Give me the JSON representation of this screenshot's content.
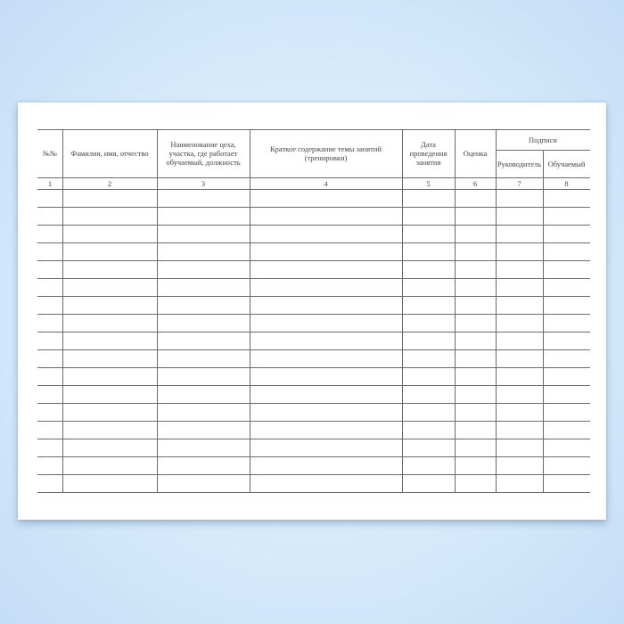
{
  "table": {
    "headers": [
      "№№",
      "Фамилия, имя, отчество",
      "Наименование цеха, участка, где работает обучаемый, должность",
      "Краткое содержание темы занятий (тренировки)",
      "Дата проведения занятия",
      "Оценка"
    ],
    "group_header": "Подписи",
    "sub_headers": [
      "Руководитель",
      "Обучаемый"
    ],
    "column_numbers": [
      "1",
      "2",
      "3",
      "4",
      "5",
      "6",
      "7",
      "8"
    ],
    "empty_rows": 17
  }
}
